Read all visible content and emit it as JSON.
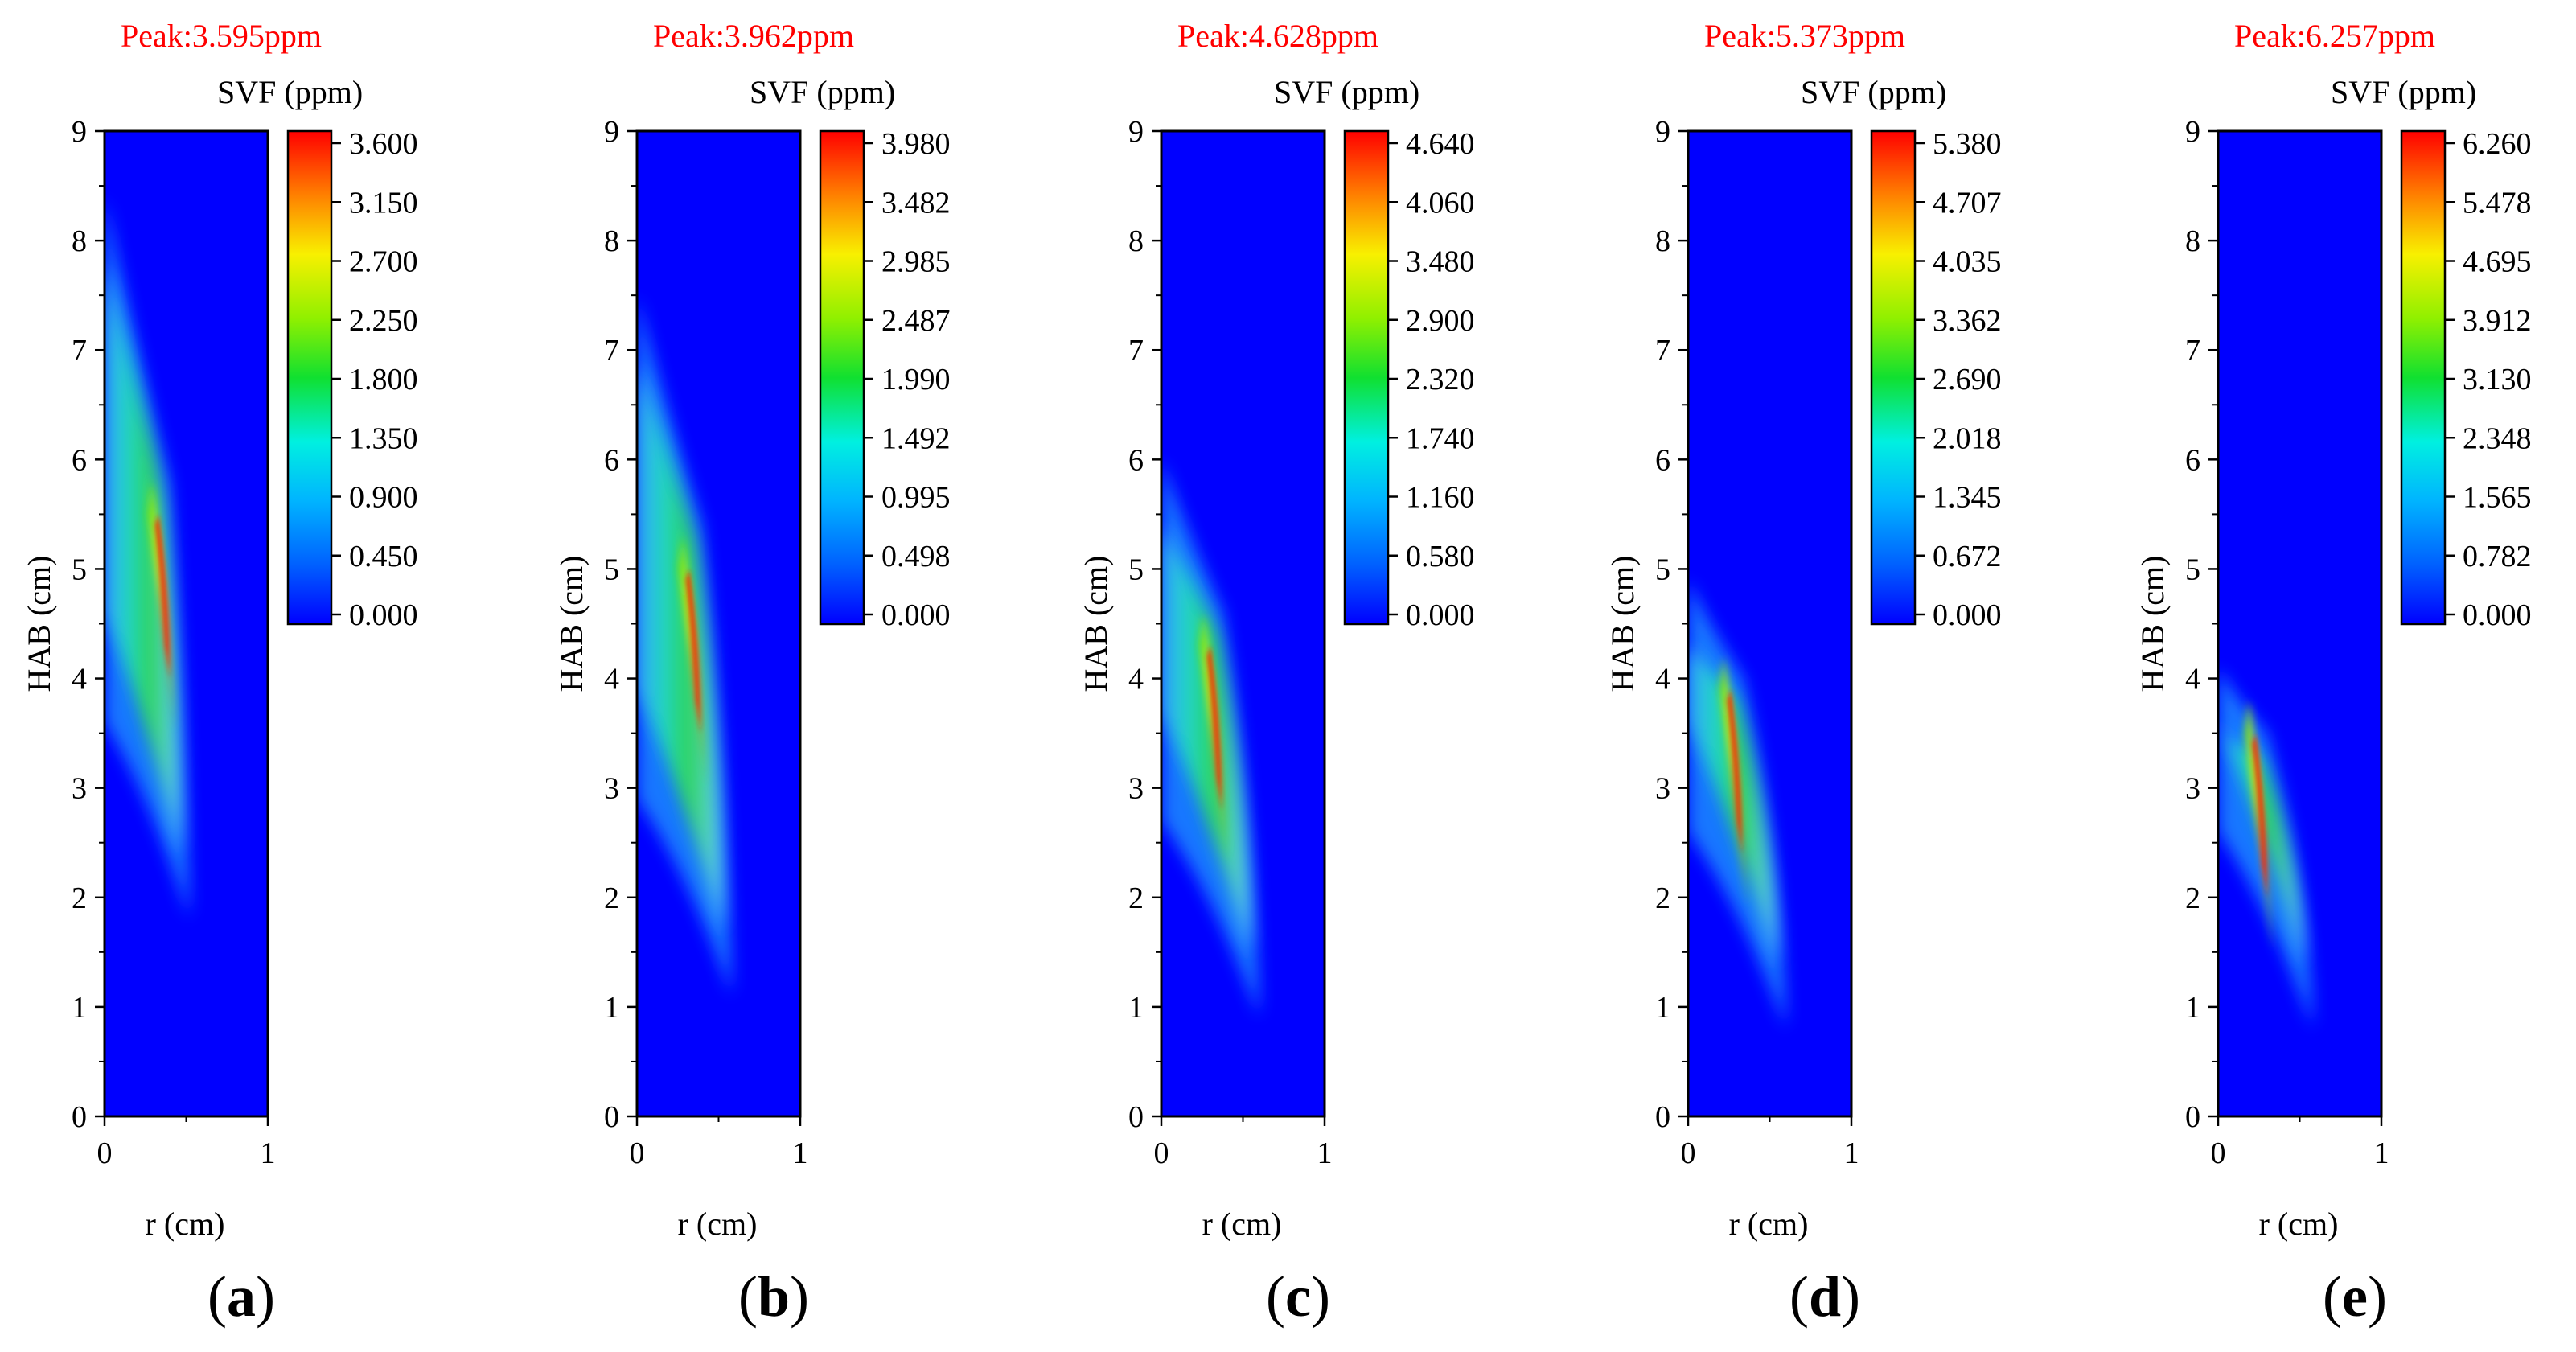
{
  "figure": {
    "panels": [
      {
        "label": "a",
        "peak_text": "Peak:3.595ppm",
        "cb_title": "SVF (ppm)",
        "xlabel": "r (cm)",
        "ylabel": "HAB (cm)",
        "cb_ticks": [
          "3.600",
          "3.150",
          "2.700",
          "2.250",
          "1.800",
          "1.350",
          "0.900",
          "0.450",
          "0.000"
        ]
      },
      {
        "label": "b",
        "peak_text": "Peak:3.962ppm",
        "cb_title": "SVF (ppm)",
        "xlabel": "r (cm)",
        "ylabel": "HAB (cm)",
        "cb_ticks": [
          "3.980",
          "3.482",
          "2.985",
          "2.487",
          "1.990",
          "1.492",
          "0.995",
          "0.498",
          "0.000"
        ]
      },
      {
        "label": "c",
        "peak_text": "Peak:4.628ppm",
        "cb_title": "SVF (ppm)",
        "xlabel": "r (cm)",
        "ylabel": "HAB (cm)",
        "cb_ticks": [
          "4.640",
          "4.060",
          "3.480",
          "2.900",
          "2.320",
          "1.740",
          "1.160",
          "0.580",
          "0.000"
        ]
      },
      {
        "label": "d",
        "peak_text": "Peak:5.373ppm",
        "cb_title": "SVF (ppm)",
        "xlabel": "r (cm)",
        "ylabel": "HAB (cm)",
        "cb_ticks": [
          "5.380",
          "4.707",
          "4.035",
          "3.362",
          "2.690",
          "2.018",
          "1.345",
          "0.672",
          "0.000"
        ]
      },
      {
        "label": "e",
        "peak_text": "Peak:6.257ppm",
        "cb_title": "SVF (ppm)",
        "xlabel": "r (cm)",
        "ylabel": "HAB (cm)",
        "cb_ticks": [
          "6.260",
          "5.478",
          "4.695",
          "3.912",
          "3.130",
          "2.348",
          "1.565",
          "0.782",
          "0.000"
        ]
      }
    ]
  },
  "chart_data": [
    {
      "type": "heatmap",
      "title": "(a)",
      "peak_ppm": 3.595,
      "xlabel": "r (cm)",
      "ylabel": "HAB (cm)",
      "xlim": [
        0,
        1
      ],
      "ylim": [
        0,
        9
      ],
      "x_ticks": [
        0,
        1
      ],
      "y_ticks": [
        0,
        1,
        2,
        3,
        4,
        5,
        6,
        7,
        8,
        9
      ],
      "colorbar_range": [
        0.0,
        3.6
      ],
      "colorbar_label": "SVF (ppm)",
      "flame": {
        "tip_hab": 1.8,
        "tip_r": 0.52,
        "edge_hab": 8.4,
        "wing_hab": 5.8,
        "wing_r": 0.3,
        "peak_hab": 4.9,
        "peak_r": 0.36
      }
    },
    {
      "type": "heatmap",
      "title": "(b)",
      "peak_ppm": 3.962,
      "xlabel": "r (cm)",
      "ylabel": "HAB (cm)",
      "xlim": [
        0,
        1
      ],
      "ylim": [
        0,
        9
      ],
      "x_ticks": [
        0,
        1
      ],
      "y_ticks": [
        0,
        1,
        2,
        3,
        4,
        5,
        6,
        7,
        8,
        9
      ],
      "colorbar_range": [
        0.0,
        3.98
      ],
      "colorbar_label": "SVF (ppm)",
      "flame": {
        "tip_hab": 1.1,
        "tip_r": 0.58,
        "edge_hab": 7.5,
        "wing_hab": 5.4,
        "wing_r": 0.3,
        "peak_hab": 4.4,
        "peak_r": 0.35
      }
    },
    {
      "type": "heatmap",
      "title": "(c)",
      "peak_ppm": 4.628,
      "xlabel": "r (cm)",
      "ylabel": "HAB (cm)",
      "xlim": [
        0,
        1
      ],
      "ylim": [
        0,
        9
      ],
      "x_ticks": [
        0,
        1
      ],
      "y_ticks": [
        0,
        1,
        2,
        3,
        4,
        5,
        6,
        7,
        8,
        9
      ],
      "colorbar_range": [
        0.0,
        4.64
      ],
      "colorbar_label": "SVF (ppm)",
      "flame": {
        "tip_hab": 0.9,
        "tip_r": 0.6,
        "edge_hab": 6.0,
        "wing_hab": 4.6,
        "wing_r": 0.28,
        "peak_hab": 3.7,
        "peak_r": 0.33
      }
    },
    {
      "type": "heatmap",
      "title": "(d)",
      "peak_ppm": 5.373,
      "xlabel": "r (cm)",
      "ylabel": "HAB (cm)",
      "xlim": [
        0,
        1
      ],
      "ylim": [
        0,
        9
      ],
      "x_ticks": [
        0,
        1
      ],
      "y_ticks": [
        0,
        1,
        2,
        3,
        4,
        5,
        6,
        7,
        8,
        9
      ],
      "colorbar_range": [
        0.0,
        5.38
      ],
      "colorbar_label": "SVF (ppm)",
      "flame": {
        "tip_hab": 0.8,
        "tip_r": 0.6,
        "edge_hab": 4.9,
        "wing_hab": 4.0,
        "wing_r": 0.24,
        "peak_hab": 3.3,
        "peak_r": 0.29
      }
    },
    {
      "type": "heatmap",
      "title": "(e)",
      "peak_ppm": 6.257,
      "xlabel": "r (cm)",
      "ylabel": "HAB (cm)",
      "xlim": [
        0,
        1
      ],
      "ylim": [
        0,
        9
      ],
      "x_ticks": [
        0,
        1
      ],
      "y_ticks": [
        0,
        1,
        2,
        3,
        4,
        5,
        6,
        7,
        8,
        9
      ],
      "colorbar_range": [
        0.0,
        6.26
      ],
      "colorbar_label": "SVF (ppm)",
      "flame": {
        "tip_hab": 0.8,
        "tip_r": 0.58,
        "edge_hab": 4.1,
        "wing_hab": 3.5,
        "wing_r": 0.2,
        "peak_hab": 2.9,
        "peak_r": 0.26
      }
    }
  ]
}
